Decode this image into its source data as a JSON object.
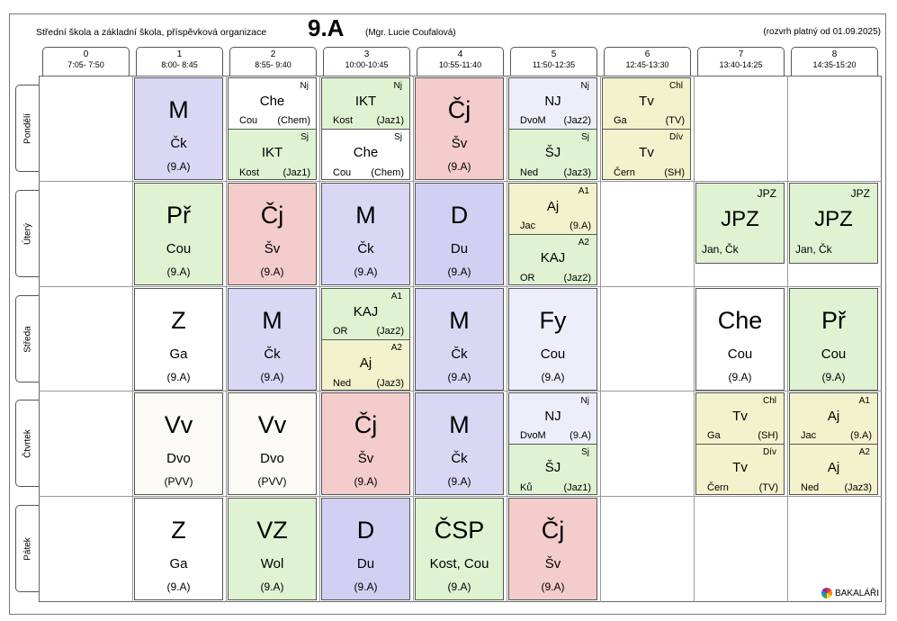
{
  "header": {
    "school": "Střední škola a základní škola, příspěvková organizace",
    "class": "9.A",
    "teacher": "(Mgr. Lucie Coufalová)",
    "valid": "(rozvrh platný od 01.09.2025)"
  },
  "periods": [
    {
      "n": "0",
      "t": "7:05- 7:50"
    },
    {
      "n": "1",
      "t": "8:00- 8:45"
    },
    {
      "n": "2",
      "t": "8:55- 9:40"
    },
    {
      "n": "3",
      "t": "10:00-10:45"
    },
    {
      "n": "4",
      "t": "10:55-11:40"
    },
    {
      "n": "5",
      "t": "11:50-12:35"
    },
    {
      "n": "6",
      "t": "12:45-13:30"
    },
    {
      "n": "7",
      "t": "13:40-14:25"
    },
    {
      "n": "8",
      "t": "14:35-15:20"
    }
  ],
  "days": [
    "Pondělí",
    "Úterý",
    "Středa",
    "Čtvrtek",
    "Pátek"
  ],
  "colors": {
    "purple": "#dad7f5",
    "white": "#ffffff",
    "green": "#dff3d2",
    "pink": "#f4cccc",
    "lavender": "#eeeefb",
    "yellow": "#f2f2cc",
    "offwhite": "#fbfaf5",
    "blue": "#d2d0f2"
  },
  "lessons": [
    {
      "day": 0,
      "p": 1,
      "kind": "big",
      "color": "purple",
      "subj": "M",
      "tch": "Čk",
      "room": "(9.A)"
    },
    {
      "day": 0,
      "p": 2,
      "kind": "split",
      "top": {
        "color": "white",
        "grp": "Nj",
        "subj": "Che",
        "tch": "Cou",
        "room": "(Chem)"
      },
      "bot": {
        "color": "green",
        "grp": "Sj",
        "subj": "IKT",
        "tch": "Kost",
        "room": "(Jaz1)"
      }
    },
    {
      "day": 0,
      "p": 3,
      "kind": "split",
      "top": {
        "color": "green",
        "grp": "Nj",
        "subj": "IKT",
        "tch": "Kost",
        "room": "(Jaz1)"
      },
      "bot": {
        "color": "white",
        "grp": "Sj",
        "subj": "Che",
        "tch": "Cou",
        "room": "(Chem)"
      }
    },
    {
      "day": 0,
      "p": 4,
      "kind": "big",
      "color": "pink",
      "subj": "Čj",
      "tch": "Šv",
      "room": "(9.A)"
    },
    {
      "day": 0,
      "p": 5,
      "kind": "split",
      "top": {
        "color": "lavender",
        "grp": "Nj",
        "subj": "NJ",
        "tch": "DvoM",
        "room": "(Jaz2)"
      },
      "bot": {
        "color": "green",
        "grp": "Sj",
        "subj": "ŠJ",
        "tch": "Ned",
        "room": "(Jaz3)"
      }
    },
    {
      "day": 0,
      "p": 6,
      "kind": "split",
      "top": {
        "color": "yellow",
        "grp": "Chl",
        "subj": "Tv",
        "tch": "Ga",
        "room": "(TV)"
      },
      "bot": {
        "color": "yellow",
        "grp": "Dív",
        "subj": "Tv",
        "tch": "Čern",
        "room": "(SH)"
      }
    },
    {
      "day": 1,
      "p": 1,
      "kind": "big",
      "color": "green",
      "subj": "Př",
      "tch": "Cou",
      "room": "(9.A)"
    },
    {
      "day": 1,
      "p": 2,
      "kind": "big",
      "color": "pink",
      "subj": "Čj",
      "tch": "Šv",
      "room": "(9.A)"
    },
    {
      "day": 1,
      "p": 3,
      "kind": "big",
      "color": "purple",
      "subj": "M",
      "tch": "Čk",
      "room": "(9.A)"
    },
    {
      "day": 1,
      "p": 4,
      "kind": "big",
      "color": "blue",
      "subj": "D",
      "tch": "Du",
      "room": "(9.A)"
    },
    {
      "day": 1,
      "p": 5,
      "kind": "split",
      "top": {
        "color": "yellow",
        "grp": "A1",
        "subj": "Aj",
        "tch": "Jac",
        "room": "(9.A)"
      },
      "bot": {
        "color": "green",
        "grp": "A2",
        "subj": "KAJ",
        "tch": "OR",
        "room": "(Jaz2)"
      }
    },
    {
      "day": 1,
      "p": 7,
      "kind": "jpz",
      "color": "green",
      "grp": "JPZ",
      "subj": "JPZ",
      "tch": "Jan, Čk"
    },
    {
      "day": 1,
      "p": 8,
      "kind": "jpz",
      "color": "green",
      "grp": "JPZ",
      "subj": "JPZ",
      "tch": "Jan, Čk"
    },
    {
      "day": 2,
      "p": 1,
      "kind": "big",
      "color": "white",
      "subj": "Z",
      "tch": "Ga",
      "room": "(9.A)"
    },
    {
      "day": 2,
      "p": 2,
      "kind": "big",
      "color": "purple",
      "subj": "M",
      "tch": "Čk",
      "room": "(9.A)"
    },
    {
      "day": 2,
      "p": 3,
      "kind": "split",
      "top": {
        "color": "green",
        "grp": "A1",
        "subj": "KAJ",
        "tch": "OR",
        "room": "(Jaz2)"
      },
      "bot": {
        "color": "yellow",
        "grp": "A2",
        "subj": "Aj",
        "tch": "Ned",
        "room": "(Jaz3)"
      }
    },
    {
      "day": 2,
      "p": 4,
      "kind": "big",
      "color": "purple",
      "subj": "M",
      "tch": "Čk",
      "room": "(9.A)"
    },
    {
      "day": 2,
      "p": 5,
      "kind": "big",
      "color": "lavender",
      "subj": "Fy",
      "tch": "Cou",
      "room": "(9.A)"
    },
    {
      "day": 2,
      "p": 7,
      "kind": "big",
      "color": "white",
      "subj": "Che",
      "tch": "Cou",
      "room": "(9.A)"
    },
    {
      "day": 2,
      "p": 8,
      "kind": "big",
      "color": "green",
      "subj": "Př",
      "tch": "Cou",
      "room": "(9.A)"
    },
    {
      "day": 3,
      "p": 1,
      "kind": "big",
      "color": "offwhite",
      "subj": "Vv",
      "tch": "Dvo",
      "room": "(PVV)"
    },
    {
      "day": 3,
      "p": 2,
      "kind": "big",
      "color": "offwhite",
      "subj": "Vv",
      "tch": "Dvo",
      "room": "(PVV)"
    },
    {
      "day": 3,
      "p": 3,
      "kind": "big",
      "color": "pink",
      "subj": "Čj",
      "tch": "Šv",
      "room": "(9.A)"
    },
    {
      "day": 3,
      "p": 4,
      "kind": "big",
      "color": "purple",
      "subj": "M",
      "tch": "Čk",
      "room": "(9.A)"
    },
    {
      "day": 3,
      "p": 5,
      "kind": "split",
      "top": {
        "color": "lavender",
        "grp": "Nj",
        "subj": "NJ",
        "tch": "DvoM",
        "room": "(9.A)"
      },
      "bot": {
        "color": "green",
        "grp": "Sj",
        "subj": "ŠJ",
        "tch": "Ků",
        "room": "(Jaz1)"
      }
    },
    {
      "day": 3,
      "p": 7,
      "kind": "split",
      "top": {
        "color": "yellow",
        "grp": "Chl",
        "subj": "Tv",
        "tch": "Ga",
        "room": "(SH)"
      },
      "bot": {
        "color": "yellow",
        "grp": "Dív",
        "subj": "Tv",
        "tch": "Čern",
        "room": "(TV)"
      }
    },
    {
      "day": 3,
      "p": 8,
      "kind": "split",
      "top": {
        "color": "yellow",
        "grp": "A1",
        "subj": "Aj",
        "tch": "Jac",
        "room": "(9.A)"
      },
      "bot": {
        "color": "yellow",
        "grp": "A2",
        "subj": "Aj",
        "tch": "Ned",
        "room": "(Jaz3)"
      }
    },
    {
      "day": 4,
      "p": 1,
      "kind": "big",
      "color": "white",
      "subj": "Z",
      "tch": "Ga",
      "room": "(9.A)"
    },
    {
      "day": 4,
      "p": 2,
      "kind": "big",
      "color": "green",
      "subj": "VZ",
      "tch": "Wol",
      "room": "(9.A)"
    },
    {
      "day": 4,
      "p": 3,
      "kind": "big",
      "color": "blue",
      "subj": "D",
      "tch": "Du",
      "room": "(9.A)"
    },
    {
      "day": 4,
      "p": 4,
      "kind": "big",
      "color": "green",
      "subj": "ČSP",
      "tch": "Kost, Cou",
      "room": "(9.A)"
    },
    {
      "day": 4,
      "p": 5,
      "kind": "big",
      "color": "pink",
      "subj": "Čj",
      "tch": "Šv",
      "room": "(9.A)"
    }
  ],
  "footer": {
    "logo": "BAKALÁŘI"
  }
}
